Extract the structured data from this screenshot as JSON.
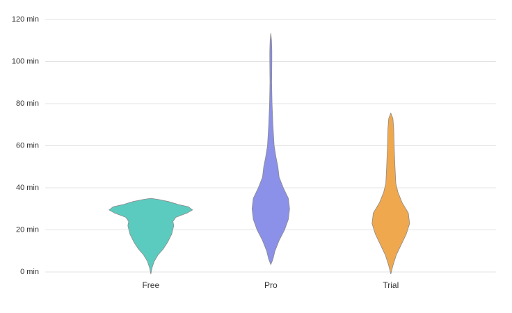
{
  "chart_data": {
    "type": "violin",
    "categories": [
      "Free",
      "Pro",
      "Trial"
    ],
    "series": [
      {
        "color": "#5ccbbf",
        "y": [
          -1,
          2,
          5,
          8,
          11,
          14,
          18,
          22,
          24,
          26,
          28,
          29.5,
          31,
          32,
          33.5,
          34.5,
          35
        ],
        "density": [
          0,
          0.03,
          0.08,
          0.17,
          0.3,
          0.4,
          0.5,
          0.55,
          0.53,
          0.6,
          0.87,
          1,
          0.9,
          0.67,
          0.42,
          0.17,
          0
        ]
      },
      {
        "color": "#8b90e8",
        "y": [
          3.5,
          6,
          10,
          15,
          20,
          25,
          30,
          35,
          40,
          45,
          50,
          55,
          60,
          70,
          80,
          90,
          100,
          105,
          110,
          113.5
        ],
        "density": [
          0,
          0.05,
          0.1,
          0.2,
          0.33,
          0.42,
          0.45,
          0.42,
          0.3,
          0.2,
          0.17,
          0.12,
          0.08,
          0.05,
          0.03,
          0.02,
          0.025,
          0.025,
          0.017,
          0
        ]
      },
      {
        "color": "#f0a84e",
        "y": [
          -1,
          3,
          8,
          13,
          18,
          23,
          28,
          33,
          38,
          42,
          50,
          60,
          68,
          73,
          75.5
        ],
        "density": [
          0,
          0.05,
          0.13,
          0.25,
          0.37,
          0.45,
          0.42,
          0.27,
          0.17,
          0.12,
          0.1,
          0.08,
          0.07,
          0.05,
          0
        ]
      }
    ],
    "ylim": [
      0,
      120
    ],
    "yticks": [
      {
        "value": 0,
        "label": "0 min"
      },
      {
        "value": 20,
        "label": "20 min"
      },
      {
        "value": 40,
        "label": "40 min"
      },
      {
        "value": 60,
        "label": "60 min"
      },
      {
        "value": 80,
        "label": "80 min"
      },
      {
        "value": 100,
        "label": "100 min"
      },
      {
        "value": 120,
        "label": "120 min"
      }
    ],
    "grid": true
  }
}
